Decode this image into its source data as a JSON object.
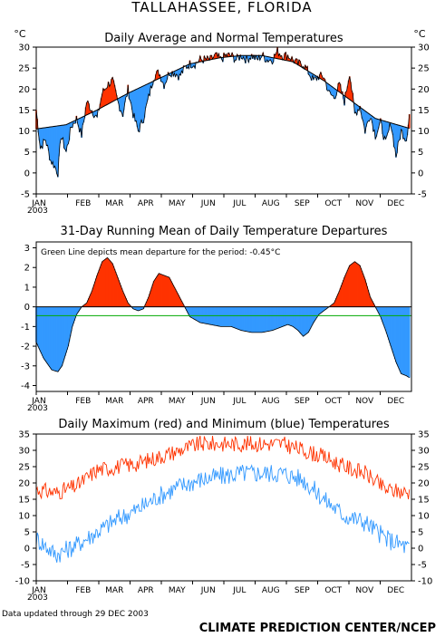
{
  "page": {
    "title": "TALLAHASSEE, FLORIDA",
    "footer_left": "Data updated through 29 DEC 2003",
    "footer_right": "CLIMATE PREDICTION CENTER/NCEP"
  },
  "colors": {
    "warm": "#ff3300",
    "cool": "#3399ff",
    "normal_line": "#000000",
    "mean_line": "#00aa00",
    "max_line": "#ff3300",
    "min_line": "#3399ff"
  },
  "chart_data": [
    {
      "id": "daily-avg",
      "type": "area",
      "title": "Daily Average and Normal Temperatures",
      "unit_left": "°C",
      "unit_right": "°C",
      "ylim": [
        -5,
        30
      ],
      "yticks": [
        -5,
        0,
        5,
        10,
        15,
        20,
        25,
        30
      ],
      "year_label": "2003",
      "months": [
        "JAN",
        "FEB",
        "MAR",
        "APR",
        "MAY",
        "JUN",
        "JUL",
        "AUG",
        "SEP",
        "OCT",
        "NOV",
        "DEC"
      ],
      "normal_keypoints": {
        "doy": [
          1,
          30,
          60,
          90,
          120,
          150,
          180,
          200,
          220,
          250,
          280,
          305,
          330,
          365
        ],
        "value": [
          10.5,
          11.5,
          15.0,
          19.0,
          22.5,
          26.0,
          27.5,
          28.0,
          28.0,
          26.5,
          22.0,
          17.5,
          13.0,
          10.5
        ]
      },
      "actual_keypoints": {
        "doy": [
          1,
          5,
          10,
          15,
          18,
          22,
          25,
          30,
          35,
          40,
          45,
          50,
          55,
          60,
          65,
          70,
          75,
          80,
          85,
          90,
          95,
          100,
          105,
          110,
          115,
          120,
          125,
          130,
          135,
          140,
          145,
          150,
          155,
          160,
          165,
          170,
          175,
          180,
          185,
          190,
          195,
          200,
          205,
          210,
          215,
          220,
          225,
          230,
          235,
          240,
          245,
          250,
          255,
          260,
          265,
          270,
          275,
          280,
          285,
          290,
          295,
          300,
          305,
          310,
          315,
          320,
          325,
          330,
          335,
          340,
          345,
          350,
          355,
          360,
          363
        ],
        "value": [
          15,
          6,
          8,
          3,
          2,
          0,
          9,
          5,
          11,
          13,
          9,
          17,
          15,
          13,
          19,
          21,
          22,
          17,
          14,
          20,
          14,
          10,
          13,
          18,
          23,
          24,
          21,
          24,
          24,
          23,
          25,
          26,
          26,
          27,
          27,
          27,
          28,
          27,
          28,
          28,
          27,
          28,
          27,
          28,
          27,
          28,
          27,
          27,
          29,
          28,
          28,
          27,
          26,
          26,
          24,
          22,
          23,
          23,
          19,
          18,
          21,
          17,
          24,
          14,
          16,
          10,
          14,
          9,
          12,
          7,
          12,
          4,
          10,
          8,
          14
        ]
      }
    },
    {
      "id": "running-mean",
      "type": "area",
      "title": "31-Day Running Mean of Daily Temperature Departures",
      "note": "Green Line depicts mean departure for the period: -0.45°C",
      "mean_departure": -0.45,
      "ylim": [
        -4.3,
        3.3
      ],
      "yticks": [
        -4,
        -3,
        -2,
        -1,
        0,
        1,
        2,
        3
      ],
      "year_label": "2003",
      "months": [
        "JAN",
        "FEB",
        "MAR",
        "APR",
        "MAY",
        "JUN",
        "JUL",
        "AUG",
        "SEP",
        "OCT",
        "NOV",
        "DEC"
      ],
      "keypoints": {
        "doy": [
          1,
          8,
          16,
          22,
          26,
          32,
          36,
          40,
          45,
          50,
          55,
          60,
          65,
          70,
          75,
          80,
          85,
          90,
          95,
          100,
          105,
          110,
          115,
          120,
          125,
          130,
          135,
          140,
          145,
          150,
          160,
          170,
          180,
          190,
          200,
          210,
          220,
          230,
          240,
          245,
          250,
          255,
          260,
          265,
          270,
          275,
          280,
          285,
          290,
          295,
          300,
          305,
          310,
          315,
          320,
          325,
          330,
          335,
          340,
          345,
          350,
          355,
          360,
          363
        ],
        "value": [
          -1.8,
          -2.6,
          -3.2,
          -3.3,
          -3.0,
          -2.0,
          -1.0,
          -0.4,
          0.0,
          0.2,
          0.8,
          1.6,
          2.3,
          2.5,
          2.2,
          1.5,
          0.8,
          0.2,
          -0.1,
          -0.2,
          -0.1,
          0.5,
          1.3,
          1.7,
          1.6,
          1.5,
          1.0,
          0.5,
          0.0,
          -0.5,
          -0.8,
          -0.9,
          -1.0,
          -1.0,
          -1.2,
          -1.3,
          -1.3,
          -1.2,
          -1.0,
          -0.9,
          -1.0,
          -1.2,
          -1.5,
          -1.3,
          -0.8,
          -0.4,
          -0.2,
          0.0,
          0.2,
          0.8,
          1.5,
          2.1,
          2.3,
          2.1,
          1.4,
          0.5,
          0.0,
          -0.5,
          -1.2,
          -2.0,
          -2.8,
          -3.4,
          -3.5,
          -3.6
        ]
      }
    },
    {
      "id": "max-min",
      "type": "line",
      "title": "Daily Maximum (red) and Minimum (blue) Temperatures",
      "ylim": [
        -10,
        35
      ],
      "yticks": [
        -10,
        -5,
        0,
        5,
        10,
        15,
        20,
        25,
        30,
        35
      ],
      "year_label": "2003",
      "months": [
        "JAN",
        "FEB",
        "MAR",
        "APR",
        "MAY",
        "JUN",
        "JUL",
        "AUG",
        "SEP",
        "OCT",
        "NOV",
        "DEC"
      ],
      "series": [
        {
          "color": "#ff3300",
          "keypoints": {
            "doy": [
              1,
              20,
              40,
              60,
              80,
              100,
              120,
              140,
              160,
              180,
              200,
              220,
              240,
              260,
              280,
              300,
              320,
              340,
              363
            ],
            "value": [
              18,
              17,
              19,
              24,
              25,
              26,
              28,
              30,
              32,
              32,
              32,
              32,
              32,
              30,
              28,
              25,
              23,
              18,
              17
            ]
          }
        },
        {
          "color": "#3399ff",
          "keypoints": {
            "doy": [
              1,
              20,
              40,
              60,
              80,
              100,
              120,
              140,
              160,
              180,
              200,
              220,
              240,
              260,
              280,
              300,
              320,
              340,
              363
            ],
            "value": [
              3,
              -2,
              1,
              5,
              9,
              12,
              16,
              19,
              21,
              22,
              23,
              23,
              23,
              21,
              15,
              10,
              8,
              3,
              0
            ]
          }
        }
      ]
    }
  ]
}
